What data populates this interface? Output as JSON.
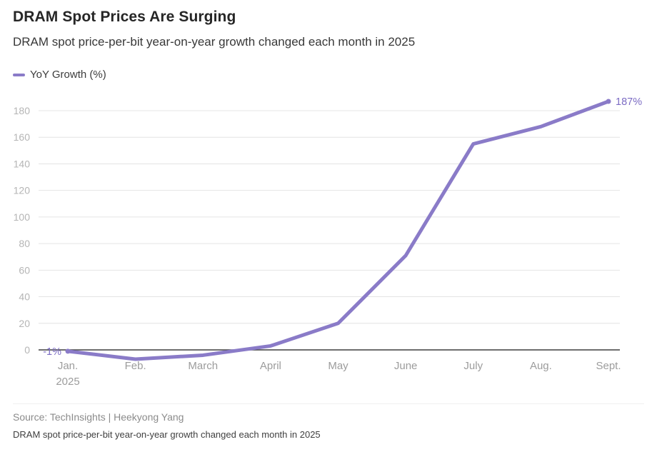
{
  "header": {
    "title": "DRAM Spot Prices Are Surging",
    "subtitle": "DRAM spot price-per-bit year-on-year growth changed each month in 2025"
  },
  "legend": {
    "label": "YoY Growth (%)"
  },
  "footer": {
    "source": "Source: TechInsights | Heekyong Yang",
    "caption": "DRAM spot price-per-bit year-on-year growth changed each month in 2025"
  },
  "chart_data": {
    "type": "line",
    "title": "DRAM Spot Prices Are Surging",
    "subtitle": "DRAM spot price-per-bit year-on-year growth changed each month in 2025",
    "categories": [
      "Jan.",
      "Feb.",
      "March",
      "April",
      "May",
      "June",
      "July",
      "Aug.",
      "Sept."
    ],
    "x_sublabels": [
      "2025",
      "",
      "",
      "",
      "",
      "",
      "",
      "",
      ""
    ],
    "series": [
      {
        "name": "YoY Growth (%)",
        "values": [
          -1,
          -7,
          -4,
          3,
          20,
          71,
          155,
          168,
          187
        ]
      }
    ],
    "y_ticks": [
      0,
      20,
      40,
      60,
      80,
      100,
      120,
      140,
      160,
      180
    ],
    "ylim": [
      -15,
      195
    ],
    "grid": "horizontal",
    "legend_position": "top-left",
    "line_color": "#8A7BC8",
    "label_color": "#7C6CC4",
    "point_labels": {
      "first": "-1%",
      "last": "187%"
    },
    "xlabel": "",
    "ylabel": "YoY Growth (%)"
  }
}
